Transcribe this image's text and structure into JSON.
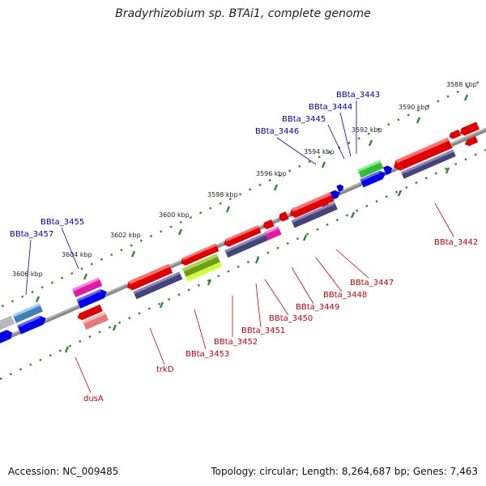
{
  "title": "Bradyrhizobium sp. BTAi1, complete genome",
  "footer": {
    "accession": "Accession: NC_009485",
    "summary": "Topology: circular; Length: 8,264,687 bp; Genes: 7,463"
  },
  "colors": {
    "backbone": "#8a8a8a",
    "scale": "#2e8b2e",
    "tick_label": "#222222",
    "forward_label": "#0000b4",
    "reverse_label": "#cc0000"
  },
  "scale_labels": [
    "3588 kbp",
    "3590 kbp",
    "3592 kbp",
    "3594 kbp",
    "3596 kbp",
    "3598 kbp",
    "3600 kbp",
    "3602 kbp",
    "3604 kbp",
    "3606 kbp"
  ],
  "forward_genes": [
    "BBta_3443",
    "BBta_3444",
    "BBta_3445",
    "BBta_3446",
    "BBta_3455",
    "BBta_3457"
  ],
  "reverse_genes": [
    "BBta_3442",
    "BBta_3447",
    "BBta_3448",
    "BBta_3449",
    "BBta_3450",
    "BBta_3451",
    "BBta_3452",
    "BBta_3453",
    "trkD",
    "dusA"
  ]
}
